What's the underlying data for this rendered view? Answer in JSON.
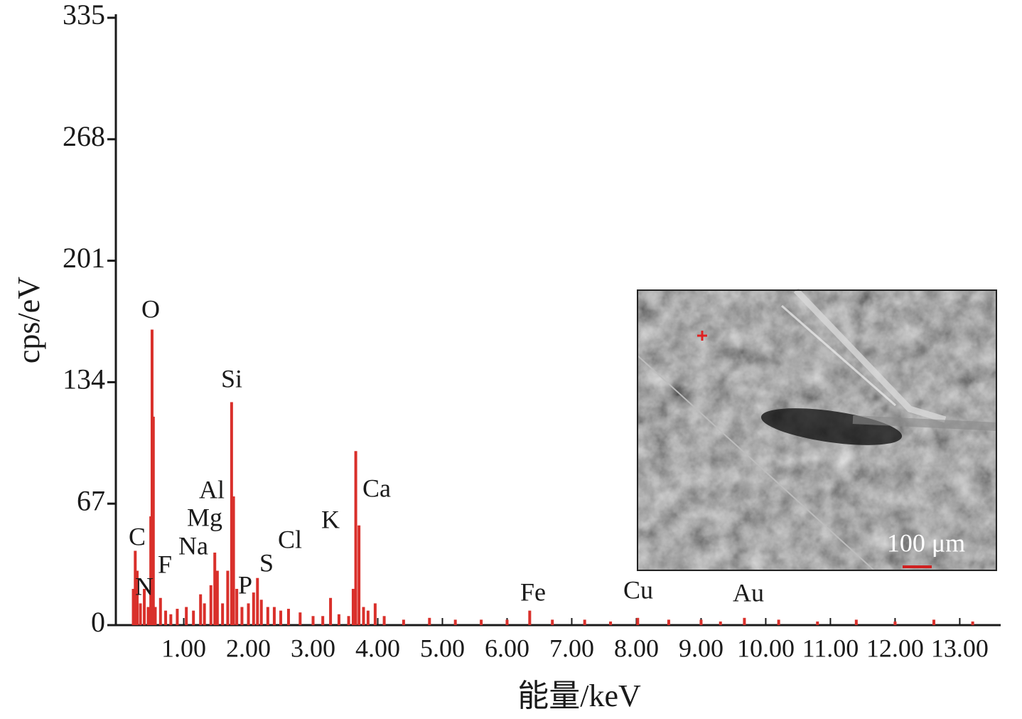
{
  "chart_data": {
    "type": "spectrum",
    "x_label": "能量/keV",
    "y_label": "cps/eV",
    "color": "#d9302b",
    "xlim": [
      -0.05,
      13.6
    ],
    "ylim": [
      0,
      335
    ],
    "yticks": [
      0,
      67,
      134,
      201,
      268,
      335
    ],
    "xticks": [
      {
        "value": 1,
        "label": "1.00"
      },
      {
        "value": 2,
        "label": "2.00"
      },
      {
        "value": 3,
        "label": "3.00"
      },
      {
        "value": 4,
        "label": "4.00"
      },
      {
        "value": 5,
        "label": "5.00"
      },
      {
        "value": 6,
        "label": "6.00"
      },
      {
        "value": 7,
        "label": "7.00"
      },
      {
        "value": 8,
        "label": "8.00"
      },
      {
        "value": 9,
        "label": "9.00"
      },
      {
        "value": 10,
        "label": "10.00"
      },
      {
        "value": 11,
        "label": "11.00"
      },
      {
        "value": 12,
        "label": "12.00"
      },
      {
        "value": 13,
        "label": "13.00"
      }
    ],
    "x": [
      0.22,
      0.25,
      0.28,
      0.33,
      0.39,
      0.45,
      0.49,
      0.51,
      0.53,
      0.56,
      0.64,
      0.72,
      0.8,
      0.9,
      1.04,
      1.15,
      1.26,
      1.32,
      1.42,
      1.48,
      1.52,
      1.6,
      1.68,
      1.74,
      1.77,
      1.82,
      1.9,
      2.0,
      2.08,
      2.14,
      2.2,
      2.3,
      2.4,
      2.5,
      2.62,
      2.8,
      3.0,
      3.15,
      3.27,
      3.4,
      3.55,
      3.62,
      3.66,
      3.71,
      3.78,
      3.85,
      3.96,
      4.1,
      4.4,
      4.8,
      5.2,
      5.6,
      6.0,
      6.35,
      6.7,
      7.2,
      7.6,
      8.02,
      8.5,
      9.0,
      9.3,
      9.67,
      10.2,
      10.8,
      11.4,
      12.0,
      12.6,
      13.2
    ],
    "values": [
      20,
      41,
      30,
      12,
      20,
      10,
      60,
      163,
      115,
      10,
      15,
      8,
      6,
      9,
      10,
      8,
      17,
      12,
      22,
      40,
      30,
      12,
      30,
      123,
      71,
      20,
      10,
      12,
      18,
      26,
      14,
      10,
      10,
      8,
      9,
      7,
      5,
      5,
      15,
      6,
      5,
      20,
      96,
      55,
      10,
      8,
      12,
      5,
      3,
      4,
      3,
      3,
      3,
      8,
      3,
      3,
      2,
      4,
      3,
      3,
      2,
      4,
      3,
      2,
      3,
      2,
      3,
      2
    ],
    "peak_labels": [
      "C",
      "N",
      "F",
      "O",
      "Na",
      "Mg",
      "Al",
      "Si",
      "P",
      "S",
      "Cl",
      "K",
      "Ca",
      "Fe",
      "Cu",
      "Au"
    ],
    "inset": {
      "scale_label": "100 μm"
    }
  }
}
